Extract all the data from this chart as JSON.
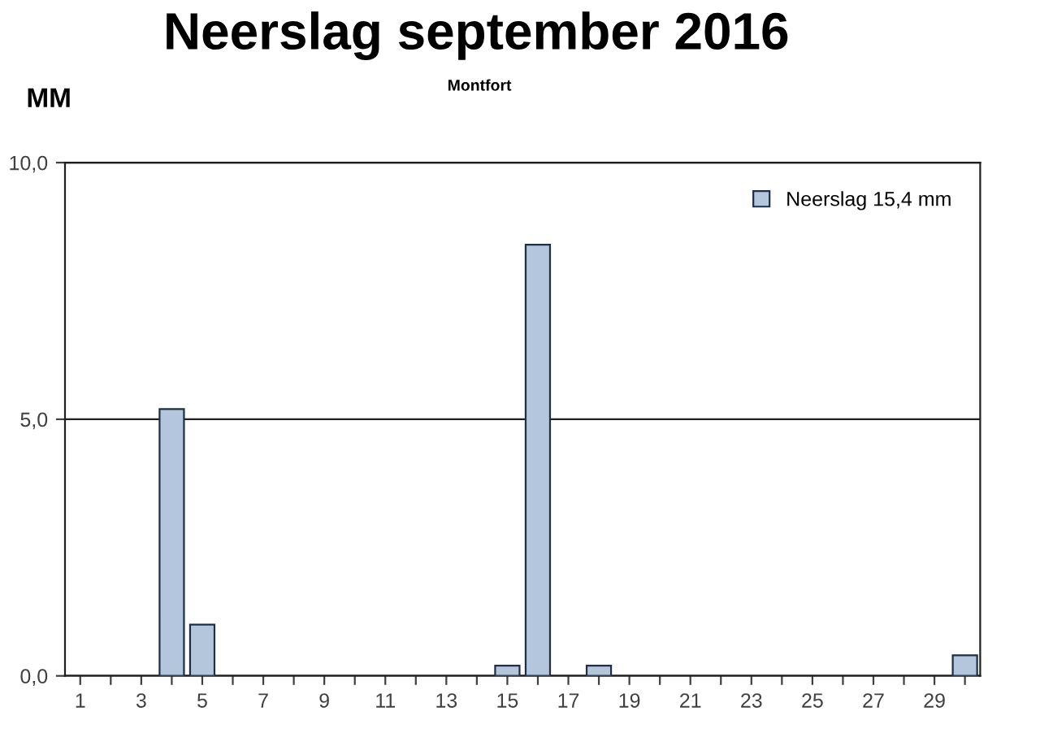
{
  "chart_data": {
    "type": "bar",
    "title": "Neerslag september 2016",
    "subtitle": "Montfort",
    "ylabel": "MM",
    "categories": [
      "1",
      null,
      "3",
      null,
      "5",
      null,
      "7",
      null,
      "9",
      null,
      "11",
      null,
      "13",
      null,
      "15",
      null,
      "17",
      null,
      "19",
      null,
      "21",
      null,
      "23",
      null,
      "25",
      null,
      "27",
      null,
      "29",
      null
    ],
    "series": [
      {
        "name": "Neerslag 15,4 mm",
        "color": "#b4c6dc",
        "values": [
          null,
          null,
          null,
          5.2,
          1.0,
          null,
          null,
          null,
          null,
          null,
          null,
          null,
          null,
          null,
          0.2,
          8.4,
          null,
          0.2,
          null,
          null,
          null,
          null,
          null,
          null,
          null,
          null,
          null,
          null,
          null,
          0.4
        ]
      }
    ],
    "ylim": [
      0,
      10
    ],
    "yticks": [
      {
        "value": 0,
        "label": "0,0"
      },
      {
        "value": 5,
        "label": "5,0"
      },
      {
        "value": 10,
        "label": "10,0"
      }
    ],
    "grid": "y",
    "legend": "top right"
  }
}
